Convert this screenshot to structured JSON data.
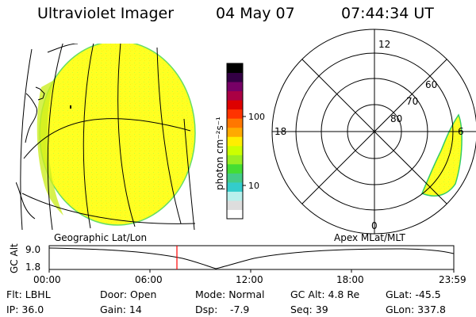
{
  "header": {
    "instrument": "Ultraviolet Imager",
    "date": "04 May 07",
    "time": "07:44:34 UT"
  },
  "colorbar": {
    "label": "photon cm⁻²s⁻¹",
    "ticks": [
      "100",
      "10"
    ],
    "colors": [
      "#ffffff",
      "#dddddd",
      "#b9f0ec",
      "#33cccc",
      "#44cc88",
      "#44dd33",
      "#99ee22",
      "#ccff00",
      "#ffee00",
      "#ffaa00",
      "#ff7700",
      "#ff3300",
      "#dd0000",
      "#aa0044",
      "#770066",
      "#330044",
      "#000000"
    ]
  },
  "polar_plot": {
    "mlt_labels": [
      "12",
      "18",
      "6",
      "0"
    ],
    "lat_labels": [
      "60",
      "70",
      "80"
    ],
    "title": "Apex MLat/MLT"
  },
  "earth_view": {
    "title": "Geographic Lat/Lon"
  },
  "altitude_plot": {
    "ylabel": "GC Alt",
    "yticks": [
      "9.0",
      "1.8"
    ],
    "xticks": [
      "00:00",
      "06:00",
      "12:00",
      "18:00",
      "23:59"
    ],
    "marker_color": "#ff0000"
  },
  "footer": {
    "filter": "Flt: LBHL",
    "ip": "IP: 36.0",
    "door": "Door: Open",
    "gain": "Gain: 14",
    "mode": "Mode: Normal",
    "dsp_label": "Dsp:",
    "dsp_value": "-7.9",
    "gc_alt": "GC Alt: 4.8 Re",
    "seq": "Seq: 39",
    "glat": "GLat: -45.5",
    "glon": "GLon: 337.8"
  }
}
